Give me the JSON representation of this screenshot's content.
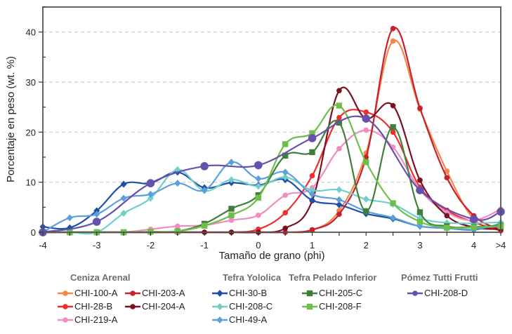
{
  "chart_data": {
    "type": "line",
    "title": "",
    "xlabel": "Tamaño de grano (phi)",
    "ylabel": "Porcentaje en peso (wt. %)",
    "x_ticks": [
      "-4",
      "-3",
      "-2",
      "-1",
      "0",
      "1",
      "2",
      "3",
      "4",
      ">4"
    ],
    "y_ticks": [
      "0",
      "10",
      "20",
      "30",
      "40"
    ],
    "xlim": [
      -4,
      4.5
    ],
    "ylim": [
      0,
      45
    ],
    "grid": "horizontal-dashed",
    "legend_position": "bottom",
    "x": [
      -4,
      -3.5,
      -3,
      -2.5,
      -2,
      -1.5,
      -1,
      -0.5,
      0,
      0.5,
      1,
      1.5,
      2,
      2.5,
      3,
      3.5,
      4,
      4.5
    ],
    "x_note": "4.5 represents >4",
    "groups": [
      {
        "name": "Ceniza Arenal",
        "series": [
          {
            "name": "CHI-100-A",
            "color": "#f4874b",
            "marker": "circle",
            "values": [
              0,
              0,
              0,
              0,
              0,
              0,
              0,
              0,
              0,
              0,
              0.4,
              4.3,
              15.8,
              38.2,
              24.6,
              12.2,
              2.6,
              0.5
            ]
          },
          {
            "name": "CHI-28-B",
            "color": "#ee2d2d",
            "marker": "circle",
            "values": [
              0,
              0,
              0,
              0,
              0,
              0,
              0,
              0,
              0.6,
              3.9,
              11.3,
              22.9,
              24.0,
              20.0,
              9.0,
              4.4,
              2.0,
              0.3
            ]
          },
          {
            "name": "CHI-219-A",
            "color": "#f28cc0",
            "marker": "circle",
            "values": [
              0,
              0,
              0,
              0,
              0.6,
              1.2,
              1.4,
              2.4,
              3.4,
              7.4,
              8.9,
              16.7,
              20.4,
              17.0,
              8.5,
              4.0,
              2.4,
              4.6
            ]
          },
          {
            "name": "CHI-203-A",
            "color": "#c8202e",
            "marker": "circle",
            "values": [
              0,
              0,
              0,
              0,
              0,
              0,
              0,
              0,
              0,
              0,
              0.5,
              3.6,
              15.0,
              40.7,
              24.8,
              10.9,
              3.3,
              0.5
            ]
          },
          {
            "name": "CHI-204-A",
            "color": "#7a1020",
            "marker": "circle",
            "values": [
              0,
              0,
              0,
              0,
              0,
              0,
              0,
              0,
              0,
              0.8,
              6.3,
              28.3,
              22.7,
              25.3,
              10.4,
              3.3,
              1.0,
              0.6
            ]
          }
        ]
      },
      {
        "name": "Tefra Yololica",
        "series": [
          {
            "name": "CHI-30-B",
            "color": "#1f4fa8",
            "marker": "diamond",
            "values": [
              1.1,
              0.9,
              4.3,
              9.6,
              9.8,
              12.0,
              8.9,
              9.9,
              9.4,
              10.5,
              6.4,
              5.5,
              3.7,
              2.7,
              1.2,
              0.8,
              0.5,
              1.7
            ]
          },
          {
            "name": "CHI-208-C",
            "color": "#6fcfcb",
            "marker": "diamond",
            "values": [
              0,
              0,
              0,
              3.8,
              6.8,
              12.5,
              8.3,
              10.5,
              9.2,
              11.0,
              8.4,
              8.5,
              6.6,
              5.6,
              2.8,
              1.9,
              1.8,
              2.0
            ]
          },
          {
            "name": "CHI-49-A",
            "color": "#5b9fdb",
            "marker": "diamond",
            "values": [
              0,
              2.9,
              3.6,
              6.8,
              7.6,
              9.8,
              8.4,
              14.0,
              10.7,
              12.0,
              7.6,
              6.5,
              4.2,
              2.9,
              1.2,
              0.8,
              0.6,
              1.6
            ]
          }
        ]
      },
      {
        "name": "Tefra Pelado Inferior",
        "series": [
          {
            "name": "CHI-205-C",
            "color": "#3f7f3a",
            "marker": "square",
            "values": [
              0,
              0,
              0,
              0,
              0.1,
              0.2,
              1.7,
              4.7,
              7.4,
              15.3,
              16.0,
              21.9,
              4.2,
              21.0,
              4.0,
              1.2,
              1.1,
              1.3
            ]
          },
          {
            "name": "CHI-208-F",
            "color": "#6cc04a",
            "marker": "square",
            "values": [
              0,
              0,
              0,
              0,
              0.1,
              0.2,
              1.3,
              3.4,
              6.9,
              17.6,
              19.8,
              25.3,
              14.0,
              5.8,
              2.1,
              0.9,
              1.0,
              1.2
            ]
          }
        ]
      },
      {
        "name": "Pómez Tutti Frutti",
        "series": [
          {
            "name": "CHI-208-D",
            "color": "#6652ad",
            "marker": "circle-large",
            "x": [
              -4,
              -3,
              -2,
              -1,
              0,
              1,
              2,
              3,
              4,
              4.5
            ],
            "values": [
              0,
              2.1,
              9.8,
              13.2,
              13.4,
              18.8,
              22.7,
              8.4,
              2.6,
              4.1
            ]
          }
        ]
      }
    ]
  }
}
